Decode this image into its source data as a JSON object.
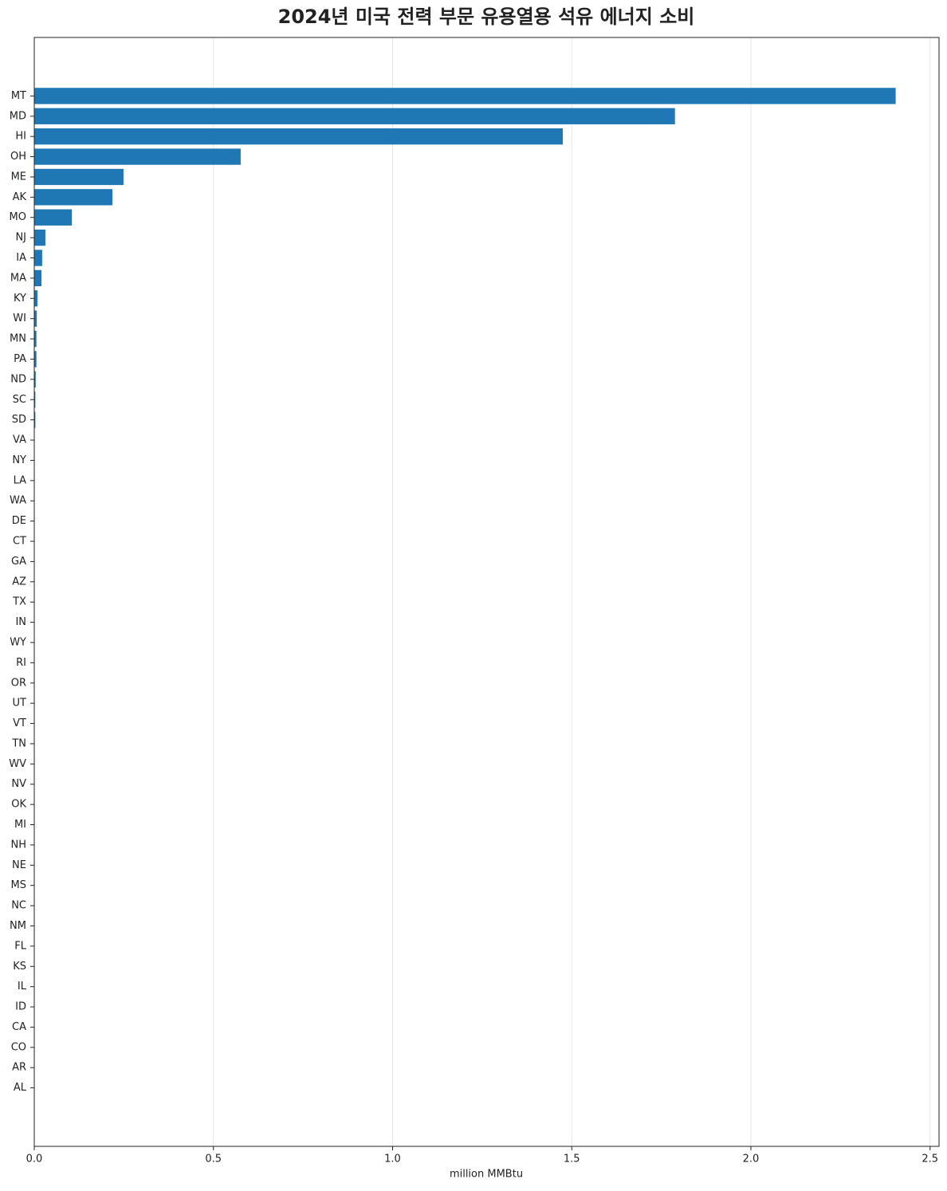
{
  "chart_data": {
    "type": "barh",
    "title": "2024년 미국 전력 부문 유용열용 석유 에너지 소비",
    "x_label": "million MMBtu",
    "categories": [
      "MT",
      "MD",
      "HI",
      "OH",
      "ME",
      "AK",
      "MO",
      "NJ",
      "IA",
      "MA",
      "KY",
      "WI",
      "MN",
      "PA",
      "ND",
      "SC",
      "SD",
      "VA",
      "NY",
      "LA",
      "WA",
      "DE",
      "CT",
      "GA",
      "AZ",
      "TX",
      "IN",
      "WY",
      "RI",
      "OR",
      "UT",
      "VT",
      "TN",
      "WV",
      "NV",
      "OK",
      "MI",
      "NH",
      "NE",
      "MS",
      "NC",
      "NM",
      "FL",
      "KS",
      "IL",
      "ID",
      "CA",
      "CO",
      "AR",
      "AL"
    ],
    "values": [
      2.404,
      1.788,
      1.475,
      0.576,
      0.249,
      0.218,
      0.105,
      0.031,
      0.022,
      0.02,
      0.009,
      0.007,
      0.006,
      0.006,
      0.004,
      0.003,
      0.003,
      0,
      0,
      0,
      0,
      0,
      0,
      0,
      0,
      0,
      0,
      0,
      0,
      0,
      0,
      0,
      0,
      0,
      0,
      0,
      0,
      0,
      0,
      0,
      0,
      0,
      0,
      0,
      0,
      0,
      0,
      0,
      0,
      0
    ],
    "color": "#1f77b4",
    "xlim": [
      0,
      2.525
    ],
    "xticks": [
      {
        "value": 0,
        "label": "0.0"
      },
      0.5,
      {
        "value": 1,
        "label": "1.0"
      },
      1.5,
      {
        "value": 2,
        "label": "2.0"
      },
      2.5
    ],
    "grid": true
  }
}
